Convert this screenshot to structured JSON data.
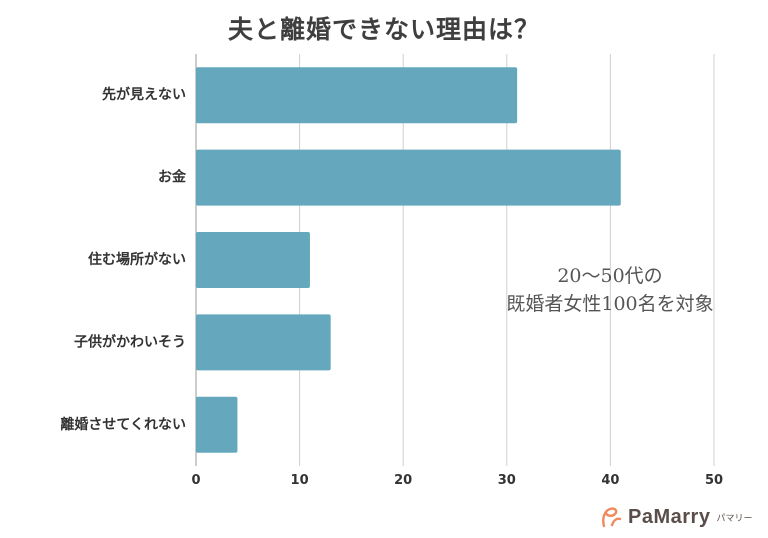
{
  "chart_data": {
    "type": "bar",
    "orientation": "horizontal",
    "title": "夫と離婚できない理由は？",
    "categories": [
      "先が見えない",
      "お金",
      "住む場所がない",
      "子供がかわいそう",
      "離婚させてくれない"
    ],
    "values": [
      31,
      41,
      11,
      13,
      4
    ],
    "xlim": [
      0,
      50
    ],
    "xticks": [
      0,
      10,
      20,
      30,
      40,
      50
    ],
    "xlabel": "",
    "ylabel": "",
    "grid": "vertical",
    "bar_color": "#65a8bd",
    "annotation": [
      "20〜50代の",
      "既婚者女性100名を対象"
    ]
  },
  "brand": {
    "name": "PaMarry",
    "kana": "パマリー",
    "icon": "pamarry-logo-icon",
    "icon_color": "#f08a5d"
  }
}
